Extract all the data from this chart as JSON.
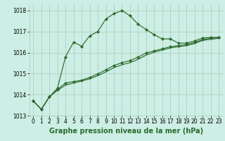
{
  "title": "Graphe pression niveau de la mer (hPa)",
  "background_color": "#cceee4",
  "grid_color": "#aaccbb",
  "line_color": "#2d6a2d",
  "x_values": [
    0,
    1,
    2,
    3,
    4,
    5,
    6,
    7,
    8,
    9,
    10,
    11,
    12,
    13,
    14,
    15,
    16,
    17,
    18,
    19,
    20,
    21,
    22,
    23
  ],
  "line1": [
    1013.7,
    1013.3,
    1013.9,
    1014.3,
    1015.8,
    1016.5,
    1016.3,
    1016.8,
    1017.0,
    1017.6,
    1017.85,
    1018.0,
    1017.75,
    1017.35,
    1017.1,
    1016.85,
    1016.65,
    1016.65,
    1016.45,
    1016.45,
    1016.55,
    1016.7,
    1016.72,
    1016.72
  ],
  "line2": [
    1013.7,
    1013.3,
    1013.9,
    1014.25,
    1014.55,
    1014.62,
    1014.68,
    1014.82,
    1014.98,
    1015.18,
    1015.38,
    1015.52,
    1015.62,
    1015.78,
    1015.98,
    1016.08,
    1016.18,
    1016.28,
    1016.33,
    1016.38,
    1016.48,
    1016.62,
    1016.68,
    1016.72
  ],
  "line3": [
    1013.7,
    1013.3,
    1013.9,
    1014.2,
    1014.45,
    1014.55,
    1014.65,
    1014.75,
    1014.9,
    1015.08,
    1015.28,
    1015.42,
    1015.52,
    1015.68,
    1015.88,
    1016.02,
    1016.12,
    1016.22,
    1016.28,
    1016.33,
    1016.43,
    1016.58,
    1016.63,
    1016.68
  ],
  "ylim": [
    1013.0,
    1018.3
  ],
  "yticks": [
    1013,
    1014,
    1015,
    1016,
    1017,
    1018
  ],
  "xticks": [
    0,
    1,
    2,
    3,
    4,
    5,
    6,
    7,
    8,
    9,
    10,
    11,
    12,
    13,
    14,
    15,
    16,
    17,
    18,
    19,
    20,
    21,
    22,
    23
  ],
  "tick_fontsize": 5.5,
  "title_fontsize": 7.0,
  "marker_size": 2.2,
  "line_width": 0.85
}
